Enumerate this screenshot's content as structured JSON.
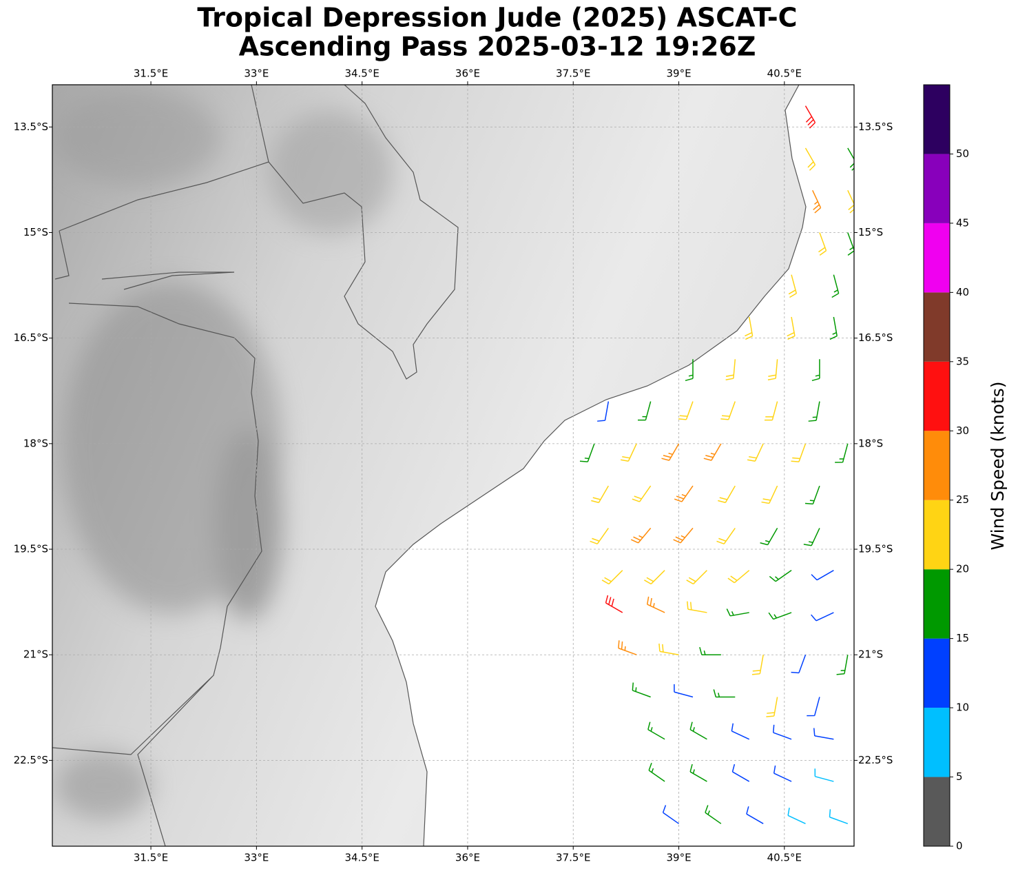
{
  "map": {
    "title": [
      "Tropical Depression Jude (2025) ASCAT-C",
      "Ascending Pass 2025-03-12 19:26Z"
    ],
    "lonlim": [
      30.1,
      41.49
    ],
    "latlim": [
      -12.9,
      -23.72
    ],
    "lonticks": [
      {
        "value": 31.5,
        "label": "31.5°E"
      },
      {
        "value": 33,
        "label": "33°E"
      },
      {
        "value": 34.5,
        "label": "34.5°E"
      },
      {
        "value": 36,
        "label": "36°E"
      },
      {
        "value": 37.5,
        "label": "37.5°E"
      },
      {
        "value": 39,
        "label": "39°E"
      },
      {
        "value": 40.5,
        "label": "40.5°E"
      }
    ],
    "latticks": [
      {
        "value": -13.5,
        "label": "13.5°S"
      },
      {
        "value": -15,
        "label": "15°S"
      },
      {
        "value": -16.5,
        "label": "16.5°S"
      },
      {
        "value": -18,
        "label": "18°S"
      },
      {
        "value": -19.5,
        "label": "19.5°S"
      },
      {
        "value": -21,
        "label": "21°S"
      },
      {
        "value": -22.5,
        "label": "22.5°S"
      }
    ],
    "grid": true,
    "colorbar": {
      "label": "Wind Speed (knots)",
      "lim": [
        0,
        55
      ],
      "bounds": [
        0,
        5,
        10,
        15,
        20,
        25,
        30,
        35,
        40,
        45,
        50,
        55
      ],
      "colors": [
        "#595959",
        "#00bfff",
        "#0040ff",
        "#009900",
        "#ffd414",
        "#ff8c0a",
        "#ff1010",
        "#803a2a",
        "#f000f0",
        "#8800bb",
        "#2d0060"
      ],
      "ticks": [
        0,
        5,
        10,
        15,
        20,
        25,
        30,
        35,
        40,
        45,
        50
      ]
    },
    "wind_barbs": [
      [
        40.8,
        -13.2,
        32,
        150
      ],
      [
        40.8,
        -13.8,
        22,
        150
      ],
      [
        41.4,
        -13.8,
        18,
        150
      ],
      [
        40.9,
        -14.4,
        27,
        155
      ],
      [
        41.4,
        -14.4,
        22,
        155
      ],
      [
        41.0,
        -15.0,
        22,
        160
      ],
      [
        41.4,
        -15.0,
        17,
        160
      ],
      [
        40.6,
        -15.6,
        22,
        165
      ],
      [
        41.2,
        -15.6,
        17,
        165
      ],
      [
        40.0,
        -16.2,
        22,
        170
      ],
      [
        40.6,
        -16.2,
        22,
        170
      ],
      [
        41.2,
        -16.2,
        17,
        170
      ],
      [
        39.2,
        -16.8,
        17,
        180
      ],
      [
        39.8,
        -16.8,
        22,
        185
      ],
      [
        40.4,
        -16.8,
        22,
        185
      ],
      [
        41.0,
        -16.8,
        17,
        180
      ],
      [
        38.0,
        -17.4,
        12,
        190
      ],
      [
        38.6,
        -17.4,
        17,
        195
      ],
      [
        39.2,
        -17.4,
        22,
        200
      ],
      [
        39.8,
        -17.4,
        22,
        200
      ],
      [
        40.4,
        -17.4,
        22,
        195
      ],
      [
        41.0,
        -17.4,
        17,
        190
      ],
      [
        37.8,
        -18.0,
        17,
        200
      ],
      [
        38.4,
        -18.0,
        22,
        205
      ],
      [
        39.0,
        -18.0,
        27,
        210
      ],
      [
        39.6,
        -18.0,
        27,
        210
      ],
      [
        40.2,
        -18.0,
        22,
        205
      ],
      [
        40.8,
        -18.0,
        22,
        200
      ],
      [
        41.4,
        -18.0,
        17,
        195
      ],
      [
        38.0,
        -18.6,
        22,
        210
      ],
      [
        38.6,
        -18.6,
        22,
        215
      ],
      [
        39.2,
        -18.6,
        27,
        215
      ],
      [
        39.8,
        -18.6,
        22,
        210
      ],
      [
        40.4,
        -18.6,
        22,
        205
      ],
      [
        41.0,
        -18.6,
        17,
        200
      ],
      [
        38.0,
        -19.2,
        22,
        215
      ],
      [
        38.6,
        -19.2,
        27,
        220
      ],
      [
        39.2,
        -19.2,
        27,
        220
      ],
      [
        39.8,
        -19.2,
        22,
        215
      ],
      [
        40.4,
        -19.2,
        17,
        210
      ],
      [
        41.0,
        -19.2,
        17,
        205
      ],
      [
        38.2,
        -19.8,
        22,
        225
      ],
      [
        38.8,
        -19.8,
        22,
        225
      ],
      [
        39.4,
        -19.8,
        22,
        225
      ],
      [
        40.0,
        -19.8,
        22,
        230
      ],
      [
        40.6,
        -19.8,
        17,
        235
      ],
      [
        41.2,
        -19.8,
        12,
        240
      ],
      [
        38.2,
        -20.4,
        31,
        300
      ],
      [
        38.8,
        -20.4,
        27,
        295
      ],
      [
        39.4,
        -20.4,
        22,
        280
      ],
      [
        40.0,
        -20.4,
        17,
        260
      ],
      [
        40.6,
        -20.4,
        17,
        250
      ],
      [
        41.2,
        -20.4,
        12,
        245
      ],
      [
        38.4,
        -21.0,
        27,
        290
      ],
      [
        39.0,
        -21.0,
        22,
        280
      ],
      [
        39.6,
        -21.0,
        17,
        270
      ],
      [
        40.2,
        -21.0,
        22,
        190
      ],
      [
        40.8,
        -21.0,
        12,
        200
      ],
      [
        41.4,
        -21.0,
        17,
        190
      ],
      [
        38.6,
        -21.6,
        17,
        290
      ],
      [
        39.2,
        -21.6,
        12,
        285
      ],
      [
        39.8,
        -21.6,
        17,
        270
      ],
      [
        40.4,
        -21.6,
        22,
        190
      ],
      [
        41.0,
        -21.6,
        12,
        195
      ],
      [
        38.8,
        -22.2,
        17,
        300
      ],
      [
        39.4,
        -22.2,
        17,
        300
      ],
      [
        40.0,
        -22.2,
        12,
        295
      ],
      [
        40.6,
        -22.2,
        12,
        290
      ],
      [
        41.2,
        -22.2,
        12,
        280
      ],
      [
        38.8,
        -22.8,
        17,
        305
      ],
      [
        39.4,
        -22.8,
        17,
        300
      ],
      [
        40.0,
        -22.8,
        12,
        300
      ],
      [
        40.6,
        -22.8,
        12,
        295
      ],
      [
        41.2,
        -22.8,
        8,
        285
      ],
      [
        39.0,
        -23.4,
        12,
        305
      ],
      [
        39.6,
        -23.4,
        17,
        305
      ],
      [
        40.2,
        -23.4,
        12,
        300
      ],
      [
        40.8,
        -23.4,
        8,
        295
      ],
      [
        41.4,
        -23.4,
        8,
        290
      ]
    ]
  }
}
